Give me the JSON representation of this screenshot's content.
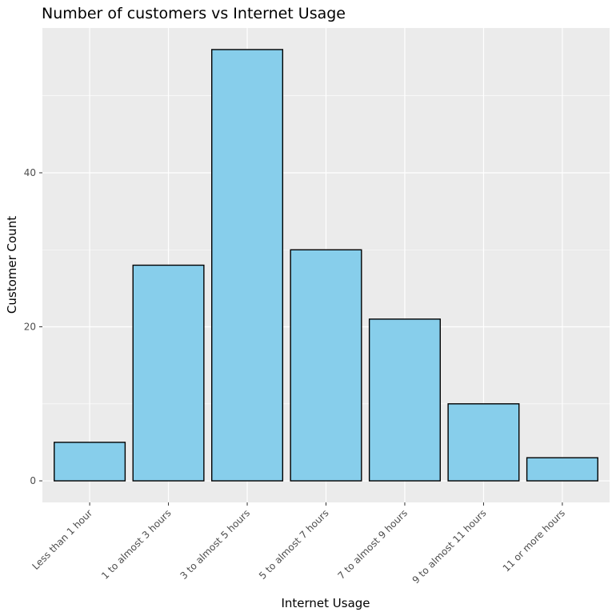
{
  "chart_data": {
    "type": "bar",
    "title": "Number of customers vs Internet Usage",
    "xlabel": "Internet Usage",
    "ylabel": "Customer Count",
    "categories": [
      "Less than 1 hour",
      "1 to almost 3 hours",
      "3 to almost 5 hours",
      "5 to almost 7 hours",
      "7 to almost 9 hours",
      "9 to almost 11 hours",
      "11 or more hours"
    ],
    "values": [
      5,
      28,
      56,
      30,
      21,
      10,
      3
    ],
    "ylim": [
      -2.8,
      58.8
    ],
    "yticks": [
      0,
      20,
      40
    ],
    "ytick_labels": [
      "0",
      "20",
      "40"
    ],
    "grid": true,
    "colors": {
      "bar_fill": "#87CEEB",
      "bar_stroke": "#000000",
      "panel_background": "#EBEBEB",
      "grid_major": "#FFFFFF",
      "tick_text": "#4D4D4D",
      "tick_mark": "#333333"
    }
  }
}
